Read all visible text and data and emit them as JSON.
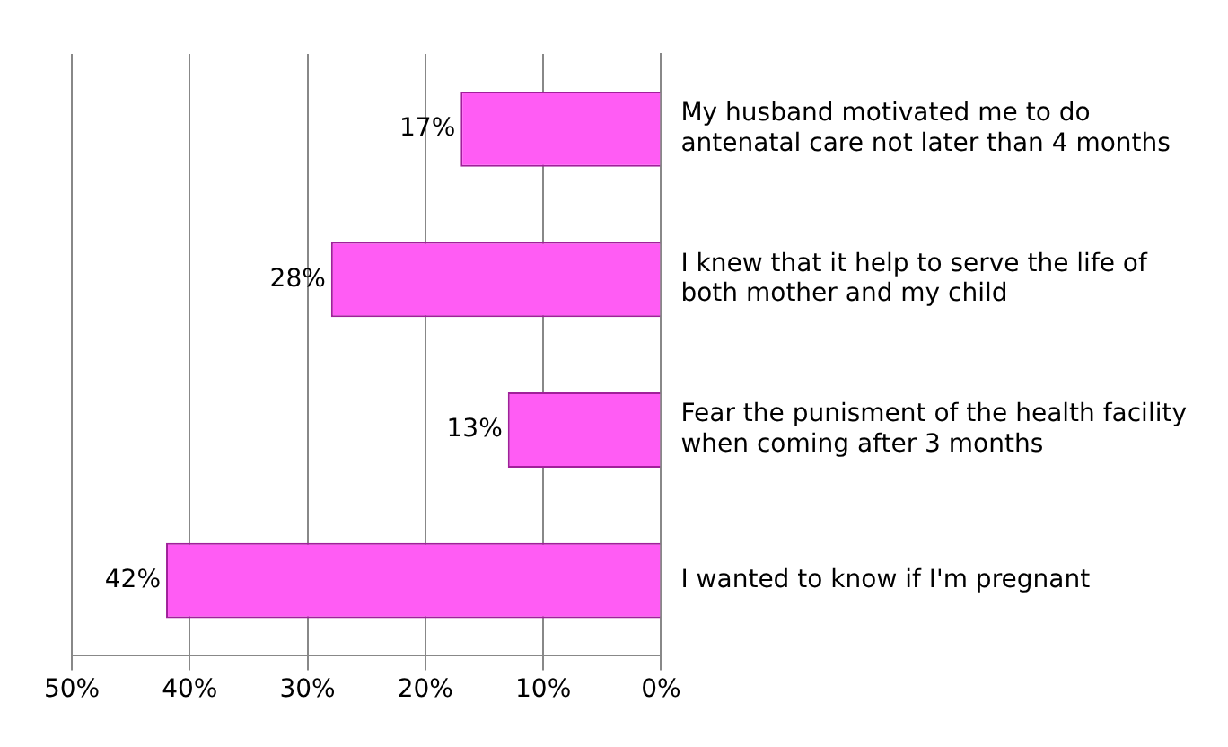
{
  "chart_data": {
    "type": "bar",
    "orientation": "horizontal",
    "categories": [
      "My husband motivated me to do antenatal care not later than 4 months",
      "I knew that it help to serve the life of both mother and my child",
      "Fear the punisment of the health facility when coming after 3 months",
      "I wanted to know if I'm pregnant"
    ],
    "values": [
      17,
      28,
      13,
      42
    ],
    "color": "#ff5cf4",
    "value_labels": [
      "17%",
      "28%",
      "13%",
      "42%"
    ],
    "xlim": [
      50,
      0
    ],
    "xticks": [
      {
        "value": 50,
        "label": "50%"
      },
      {
        "value": 40,
        "label": "40%"
      },
      {
        "value": 30,
        "label": "30%"
      },
      {
        "value": 20,
        "label": "20%"
      },
      {
        "value": 10,
        "label": "10%"
      },
      {
        "value": 0,
        "label": "0%"
      }
    ],
    "grid": "x",
    "legend": false
  }
}
